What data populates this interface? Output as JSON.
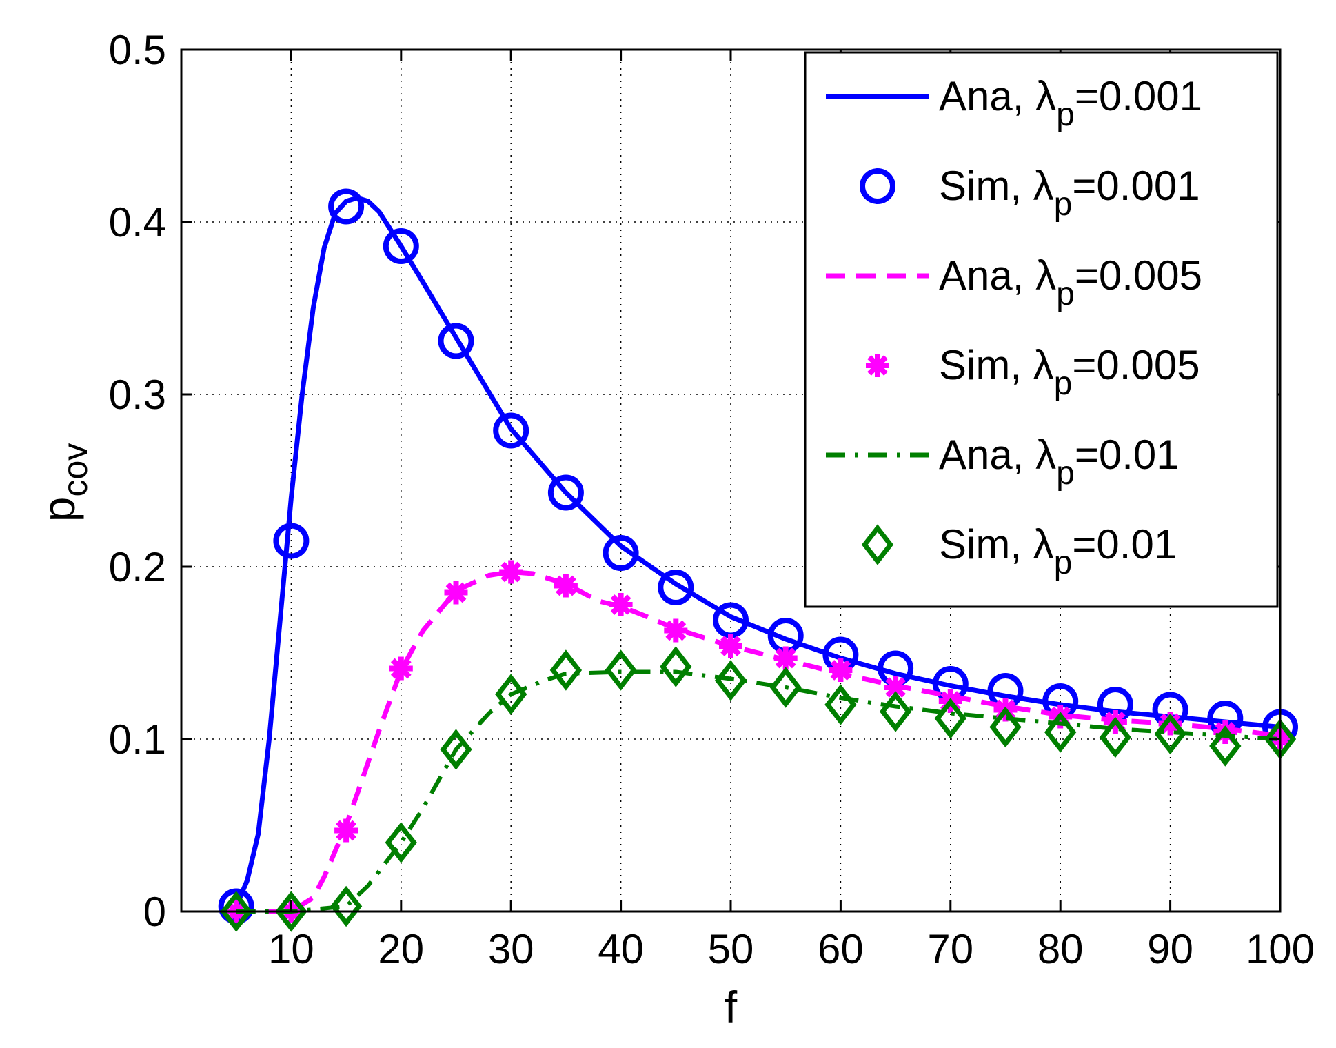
{
  "chart_data": {
    "type": "line",
    "title": "",
    "xlabel": "f",
    "ylabel": {
      "main": "p",
      "sub": "cov"
    },
    "xlim": [
      0,
      100
    ],
    "ylim": [
      0,
      0.5
    ],
    "xticks": [
      10,
      20,
      30,
      40,
      50,
      60,
      70,
      80,
      90,
      100
    ],
    "xtick_labels": [
      "10",
      "20",
      "30",
      "40",
      "50",
      "60",
      "70",
      "80",
      "90",
      "100"
    ],
    "yticks": [
      0,
      0.1,
      0.2,
      0.3,
      0.4,
      0.5
    ],
    "ytick_labels": [
      "0",
      "0.1",
      "0.2",
      "0.3",
      "0.4",
      "0.5"
    ],
    "grid": true,
    "legend_position": "top-right",
    "series": [
      {
        "id": "ana-0001",
        "name": "Ana, λp=0.001",
        "legend": {
          "pre": "Ana, λ",
          "sub": "p",
          "post": "=0.001"
        },
        "kind": "line",
        "color": "#0000ff",
        "line_style": "solid",
        "x": [
          5,
          6,
          7,
          8,
          9,
          10,
          11,
          12,
          13,
          14,
          15,
          16,
          17,
          18,
          19,
          20,
          22,
          25,
          30,
          35,
          40,
          45,
          50,
          55,
          60,
          65,
          70,
          75,
          80,
          85,
          90,
          95,
          100
        ],
        "y": [
          0.003,
          0.018,
          0.045,
          0.1,
          0.17,
          0.24,
          0.3,
          0.35,
          0.385,
          0.405,
          0.412,
          0.414,
          0.412,
          0.406,
          0.396,
          0.386,
          0.365,
          0.333,
          0.28,
          0.243,
          0.212,
          0.19,
          0.171,
          0.158,
          0.147,
          0.138,
          0.131,
          0.125,
          0.12,
          0.116,
          0.113,
          0.11,
          0.107
        ]
      },
      {
        "id": "sim-0001",
        "name": "Sim, λp=0.001",
        "legend": {
          "pre": "Sim, λ",
          "sub": "p",
          "post": "=0.001"
        },
        "kind": "marker",
        "marker": "circle",
        "color": "#0000ff",
        "x": [
          5,
          10,
          15,
          20,
          25,
          30,
          35,
          40,
          45,
          50,
          55,
          60,
          65,
          70,
          75,
          80,
          85,
          90,
          95,
          100
        ],
        "y": [
          0.003,
          0.215,
          0.409,
          0.386,
          0.331,
          0.279,
          0.243,
          0.208,
          0.188,
          0.169,
          0.16,
          0.149,
          0.141,
          0.132,
          0.128,
          0.122,
          0.12,
          0.117,
          0.112,
          0.107
        ]
      },
      {
        "id": "ana-0005",
        "name": "Ana, λp=0.005",
        "legend": {
          "pre": "Ana, λ",
          "sub": "p",
          "post": "=0.005"
        },
        "kind": "line",
        "color": "#ff00ff",
        "line_style": "dashed",
        "x": [
          5,
          10,
          12,
          13,
          14,
          15,
          16,
          18,
          20,
          22,
          25,
          28,
          30,
          32,
          35,
          38,
          40,
          42,
          45,
          50,
          55,
          60,
          65,
          70,
          75,
          80,
          85,
          90,
          95,
          100
        ],
        "y": [
          0,
          0,
          0.008,
          0.02,
          0.035,
          0.05,
          0.068,
          0.105,
          0.14,
          0.163,
          0.186,
          0.195,
          0.197,
          0.196,
          0.19,
          0.18,
          0.177,
          0.172,
          0.164,
          0.154,
          0.146,
          0.138,
          0.131,
          0.125,
          0.119,
          0.114,
          0.111,
          0.109,
          0.106,
          0.102
        ]
      },
      {
        "id": "sim-0005",
        "name": "Sim, λp=0.005",
        "legend": {
          "pre": "Sim, λ",
          "sub": "p",
          "post": "=0.005"
        },
        "kind": "marker",
        "marker": "asterisk",
        "color": "#ff00ff",
        "x": [
          5,
          10,
          15,
          20,
          25,
          30,
          35,
          40,
          45,
          50,
          55,
          60,
          65,
          70,
          75,
          80,
          85,
          90,
          95,
          100
        ],
        "y": [
          0,
          0,
          0.047,
          0.141,
          0.185,
          0.197,
          0.189,
          0.178,
          0.163,
          0.154,
          0.147,
          0.14,
          0.13,
          0.122,
          0.117,
          0.113,
          0.11,
          0.109,
          0.104,
          0.101
        ]
      },
      {
        "id": "ana-001",
        "name": "Ana, λp=0.01",
        "legend": {
          "pre": "Ana, λ",
          "sub": "p",
          "post": "=0.01"
        },
        "kind": "line",
        "color": "#007f00",
        "line_style": "dashdot",
        "x": [
          5,
          10,
          15,
          17,
          20,
          22,
          25,
          28,
          30,
          33,
          35,
          40,
          45,
          50,
          55,
          60,
          65,
          70,
          75,
          80,
          85,
          90,
          95,
          100
        ],
        "y": [
          0,
          0,
          0.003,
          0.015,
          0.04,
          0.06,
          0.094,
          0.115,
          0.126,
          0.134,
          0.138,
          0.139,
          0.139,
          0.135,
          0.13,
          0.124,
          0.119,
          0.115,
          0.112,
          0.109,
          0.106,
          0.104,
          0.102,
          0.1
        ]
      },
      {
        "id": "sim-001",
        "name": "Sim, λp=0.01",
        "legend": {
          "pre": "Sim, λ",
          "sub": "p",
          "post": "=0.01"
        },
        "kind": "marker",
        "marker": "diamond",
        "color": "#007f00",
        "x": [
          5,
          10,
          15,
          20,
          25,
          30,
          35,
          40,
          45,
          50,
          55,
          60,
          65,
          70,
          75,
          80,
          85,
          90,
          95,
          100
        ],
        "y": [
          0,
          0,
          0.003,
          0.04,
          0.094,
          0.126,
          0.14,
          0.14,
          0.142,
          0.134,
          0.13,
          0.12,
          0.116,
          0.112,
          0.107,
          0.104,
          0.101,
          0.103,
          0.096,
          0.1
        ]
      }
    ]
  }
}
